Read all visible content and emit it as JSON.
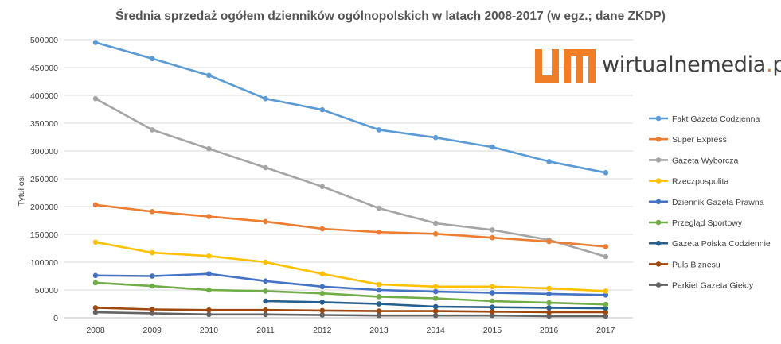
{
  "chart_data": {
    "type": "line",
    "title": "Średnia sprzedaż ogółem dzienników ogólnopolskich w latach 2008-2017 (w egz.; dane ZKDP)",
    "xlabel": "",
    "ylabel": "Tytuł osi",
    "categories": [
      "2008",
      "2009",
      "2010",
      "2011",
      "2012",
      "2013",
      "2014",
      "2015",
      "2016",
      "2017"
    ],
    "ylim": [
      0,
      500000
    ],
    "yticks": [
      0,
      50000,
      100000,
      150000,
      200000,
      250000,
      300000,
      350000,
      400000,
      450000,
      500000
    ],
    "grid": true,
    "legend_position": "right",
    "series": [
      {
        "name": "Fakt Gazeta Codzienna",
        "color": "#5b9bd5",
        "values": [
          495000,
          466000,
          436000,
          394000,
          374000,
          338000,
          324000,
          307000,
          281000,
          261000
        ]
      },
      {
        "name": "Super Express",
        "color": "#ed7d31",
        "values": [
          203000,
          191000,
          182000,
          173000,
          160000,
          154000,
          151000,
          144000,
          137000,
          128000
        ]
      },
      {
        "name": "Gazeta Wyborcza",
        "color": "#a5a5a5",
        "values": [
          394000,
          338000,
          304000,
          270000,
          236000,
          197000,
          170000,
          158000,
          140000,
          110000
        ]
      },
      {
        "name": "Rzeczpospolita",
        "color": "#ffc000",
        "values": [
          136000,
          117000,
          111000,
          100000,
          79000,
          60000,
          56000,
          56000,
          53000,
          48000
        ]
      },
      {
        "name": "Dziennik Gazeta Prawna",
        "color": "#4472c4",
        "values": [
          76000,
          75000,
          79000,
          66000,
          56000,
          50000,
          47000,
          45000,
          43000,
          41000
        ]
      },
      {
        "name": "Przegląd Sportowy",
        "color": "#70ad47",
        "values": [
          63000,
          57000,
          50000,
          48000,
          44000,
          38000,
          35000,
          30000,
          27000,
          24000
        ]
      },
      {
        "name": "Gazeta Polska Codziennie",
        "color": "#255e91",
        "values": [
          null,
          null,
          null,
          30000,
          28000,
          25000,
          20000,
          19000,
          18000,
          17000
        ]
      },
      {
        "name": "Puls Biznesu",
        "color": "#9e480e",
        "values": [
          18000,
          15000,
          14000,
          14000,
          13000,
          12000,
          12000,
          11000,
          10000,
          10000
        ]
      },
      {
        "name": "Parkiet Gazeta Giełdy",
        "color": "#636363",
        "values": [
          10000,
          8000,
          6000,
          6000,
          5000,
          4000,
          4000,
          4000,
          3000,
          3000
        ]
      }
    ]
  },
  "logo": {
    "text_main": "wirtualnemedia",
    "text_dot": ".",
    "text_tld": "pl",
    "mark_color": "#f07e26"
  }
}
